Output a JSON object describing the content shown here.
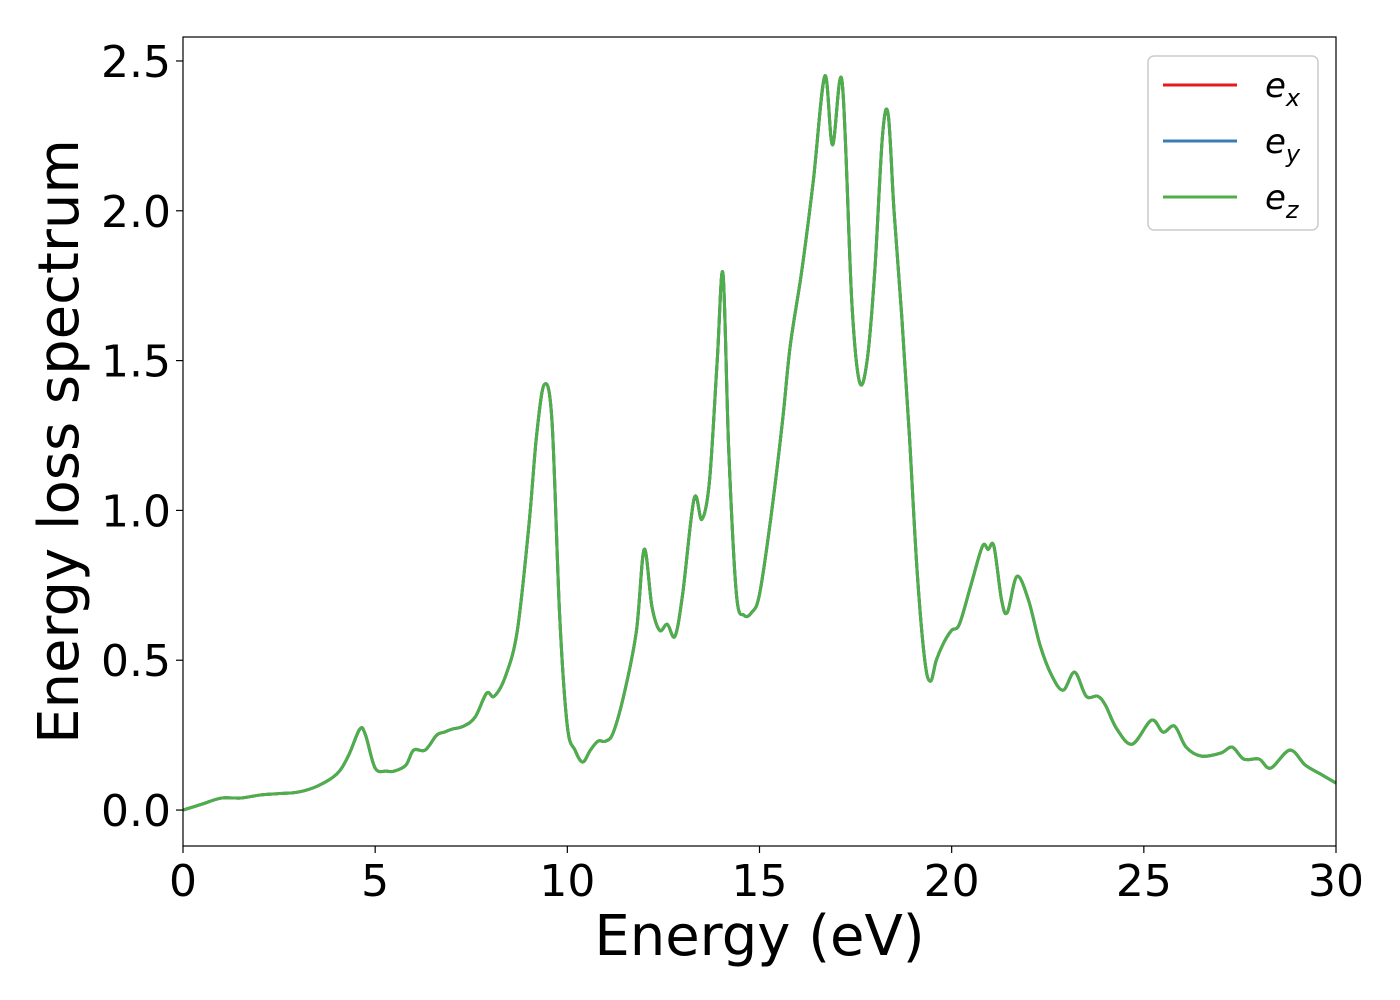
{
  "chart_data": {
    "type": "line",
    "xlabel": "Energy (eV)",
    "ylabel": "Energy loss spectrum",
    "xlim": [
      0,
      30
    ],
    "ylim": [
      -0.12,
      2.58
    ],
    "xticks": [
      0,
      5,
      10,
      15,
      20,
      25,
      30
    ],
    "xtick_labels": [
      "0",
      "5",
      "10",
      "15",
      "20",
      "25",
      "30"
    ],
    "yticks": [
      0.0,
      0.5,
      1.0,
      1.5,
      2.0,
      2.5
    ],
    "ytick_labels": [
      "0.0",
      "0.5",
      "1.0",
      "1.5",
      "2.0",
      "2.5"
    ],
    "grid": false,
    "legend_position": "top-right",
    "x": [
      0,
      0.5,
      1.0,
      1.5,
      2.0,
      2.5,
      3.0,
      3.5,
      4.0,
      4.3,
      4.6,
      4.75,
      5.0,
      5.3,
      5.5,
      5.8,
      6.0,
      6.3,
      6.6,
      6.8,
      7.0,
      7.3,
      7.6,
      7.9,
      8.1,
      8.4,
      8.7,
      9.0,
      9.2,
      9.4,
      9.6,
      9.8,
      10.0,
      10.2,
      10.4,
      10.6,
      10.8,
      11.0,
      11.2,
      11.5,
      11.8,
      12.0,
      12.2,
      12.4,
      12.6,
      12.8,
      13.0,
      13.3,
      13.5,
      13.7,
      13.9,
      14.05,
      14.2,
      14.4,
      14.6,
      14.8,
      15.0,
      15.3,
      15.6,
      15.8,
      16.1,
      16.4,
      16.7,
      16.9,
      17.15,
      17.4,
      17.6,
      17.8,
      18.0,
      18.2,
      18.35,
      18.5,
      18.7,
      18.9,
      19.1,
      19.3,
      19.45,
      19.6,
      19.8,
      20.0,
      20.2,
      20.5,
      20.8,
      20.95,
      21.1,
      21.3,
      21.45,
      21.7,
      22.0,
      22.3,
      22.6,
      22.9,
      23.2,
      23.5,
      23.8,
      24.0,
      24.3,
      24.7,
      25.2,
      25.5,
      25.8,
      26.1,
      26.5,
      27.0,
      27.3,
      27.6,
      28.0,
      28.3,
      28.8,
      29.2,
      29.6,
      30.0
    ],
    "series": [
      {
        "name": "e_x",
        "legend_main": "e",
        "legend_sub": "x",
        "color": "#e41a1c",
        "values": [
          0.0,
          0.02,
          0.04,
          0.04,
          0.05,
          0.055,
          0.06,
          0.08,
          0.12,
          0.18,
          0.27,
          0.25,
          0.14,
          0.13,
          0.13,
          0.15,
          0.2,
          0.2,
          0.25,
          0.26,
          0.27,
          0.28,
          0.31,
          0.39,
          0.38,
          0.45,
          0.6,
          0.95,
          1.25,
          1.42,
          1.3,
          0.65,
          0.28,
          0.2,
          0.16,
          0.2,
          0.23,
          0.23,
          0.26,
          0.4,
          0.6,
          0.87,
          0.68,
          0.6,
          0.62,
          0.58,
          0.72,
          1.04,
          0.97,
          1.1,
          1.5,
          1.79,
          1.2,
          0.72,
          0.65,
          0.66,
          0.72,
          0.98,
          1.3,
          1.55,
          1.8,
          2.1,
          2.45,
          2.22,
          2.43,
          1.7,
          1.43,
          1.5,
          1.8,
          2.25,
          2.32,
          2.0,
          1.65,
          1.25,
          0.8,
          0.5,
          0.43,
          0.5,
          0.56,
          0.6,
          0.62,
          0.75,
          0.88,
          0.87,
          0.88,
          0.7,
          0.66,
          0.78,
          0.7,
          0.55,
          0.45,
          0.4,
          0.46,
          0.38,
          0.38,
          0.35,
          0.27,
          0.22,
          0.3,
          0.26,
          0.28,
          0.21,
          0.18,
          0.19,
          0.21,
          0.17,
          0.17,
          0.14,
          0.2,
          0.15,
          0.12,
          0.09
        ]
      },
      {
        "name": "e_y",
        "legend_main": "e",
        "legend_sub": "y",
        "color": "#377eb8",
        "values": [
          0.0,
          0.02,
          0.04,
          0.04,
          0.05,
          0.055,
          0.06,
          0.08,
          0.12,
          0.18,
          0.27,
          0.25,
          0.14,
          0.13,
          0.13,
          0.15,
          0.2,
          0.2,
          0.25,
          0.26,
          0.27,
          0.28,
          0.31,
          0.39,
          0.38,
          0.45,
          0.6,
          0.95,
          1.25,
          1.42,
          1.3,
          0.65,
          0.28,
          0.2,
          0.16,
          0.2,
          0.23,
          0.23,
          0.26,
          0.4,
          0.6,
          0.87,
          0.68,
          0.6,
          0.62,
          0.58,
          0.72,
          1.04,
          0.97,
          1.1,
          1.5,
          1.79,
          1.2,
          0.72,
          0.65,
          0.66,
          0.72,
          0.98,
          1.3,
          1.55,
          1.8,
          2.1,
          2.45,
          2.22,
          2.43,
          1.7,
          1.43,
          1.5,
          1.8,
          2.25,
          2.32,
          2.0,
          1.65,
          1.25,
          0.8,
          0.5,
          0.43,
          0.5,
          0.56,
          0.6,
          0.62,
          0.75,
          0.88,
          0.87,
          0.88,
          0.7,
          0.66,
          0.78,
          0.7,
          0.55,
          0.45,
          0.4,
          0.46,
          0.38,
          0.38,
          0.35,
          0.27,
          0.22,
          0.3,
          0.26,
          0.28,
          0.21,
          0.18,
          0.19,
          0.21,
          0.17,
          0.17,
          0.14,
          0.2,
          0.15,
          0.12,
          0.09
        ]
      },
      {
        "name": "e_z",
        "legend_main": "e",
        "legend_sub": "z",
        "color": "#4daf4a",
        "values": [
          0.0,
          0.02,
          0.04,
          0.04,
          0.05,
          0.055,
          0.06,
          0.08,
          0.12,
          0.18,
          0.27,
          0.25,
          0.14,
          0.13,
          0.13,
          0.15,
          0.2,
          0.2,
          0.25,
          0.26,
          0.27,
          0.28,
          0.31,
          0.39,
          0.38,
          0.45,
          0.6,
          0.95,
          1.25,
          1.42,
          1.3,
          0.65,
          0.28,
          0.2,
          0.16,
          0.2,
          0.23,
          0.23,
          0.26,
          0.4,
          0.6,
          0.87,
          0.68,
          0.6,
          0.62,
          0.58,
          0.72,
          1.04,
          0.97,
          1.1,
          1.5,
          1.79,
          1.2,
          0.72,
          0.65,
          0.66,
          0.72,
          0.98,
          1.3,
          1.55,
          1.8,
          2.1,
          2.45,
          2.22,
          2.43,
          1.7,
          1.43,
          1.5,
          1.8,
          2.25,
          2.32,
          2.0,
          1.65,
          1.25,
          0.8,
          0.5,
          0.43,
          0.5,
          0.56,
          0.6,
          0.62,
          0.75,
          0.88,
          0.87,
          0.88,
          0.7,
          0.66,
          0.78,
          0.7,
          0.55,
          0.45,
          0.4,
          0.46,
          0.38,
          0.38,
          0.35,
          0.27,
          0.22,
          0.3,
          0.26,
          0.28,
          0.21,
          0.18,
          0.19,
          0.21,
          0.17,
          0.17,
          0.14,
          0.2,
          0.15,
          0.12,
          0.09
        ]
      }
    ]
  }
}
